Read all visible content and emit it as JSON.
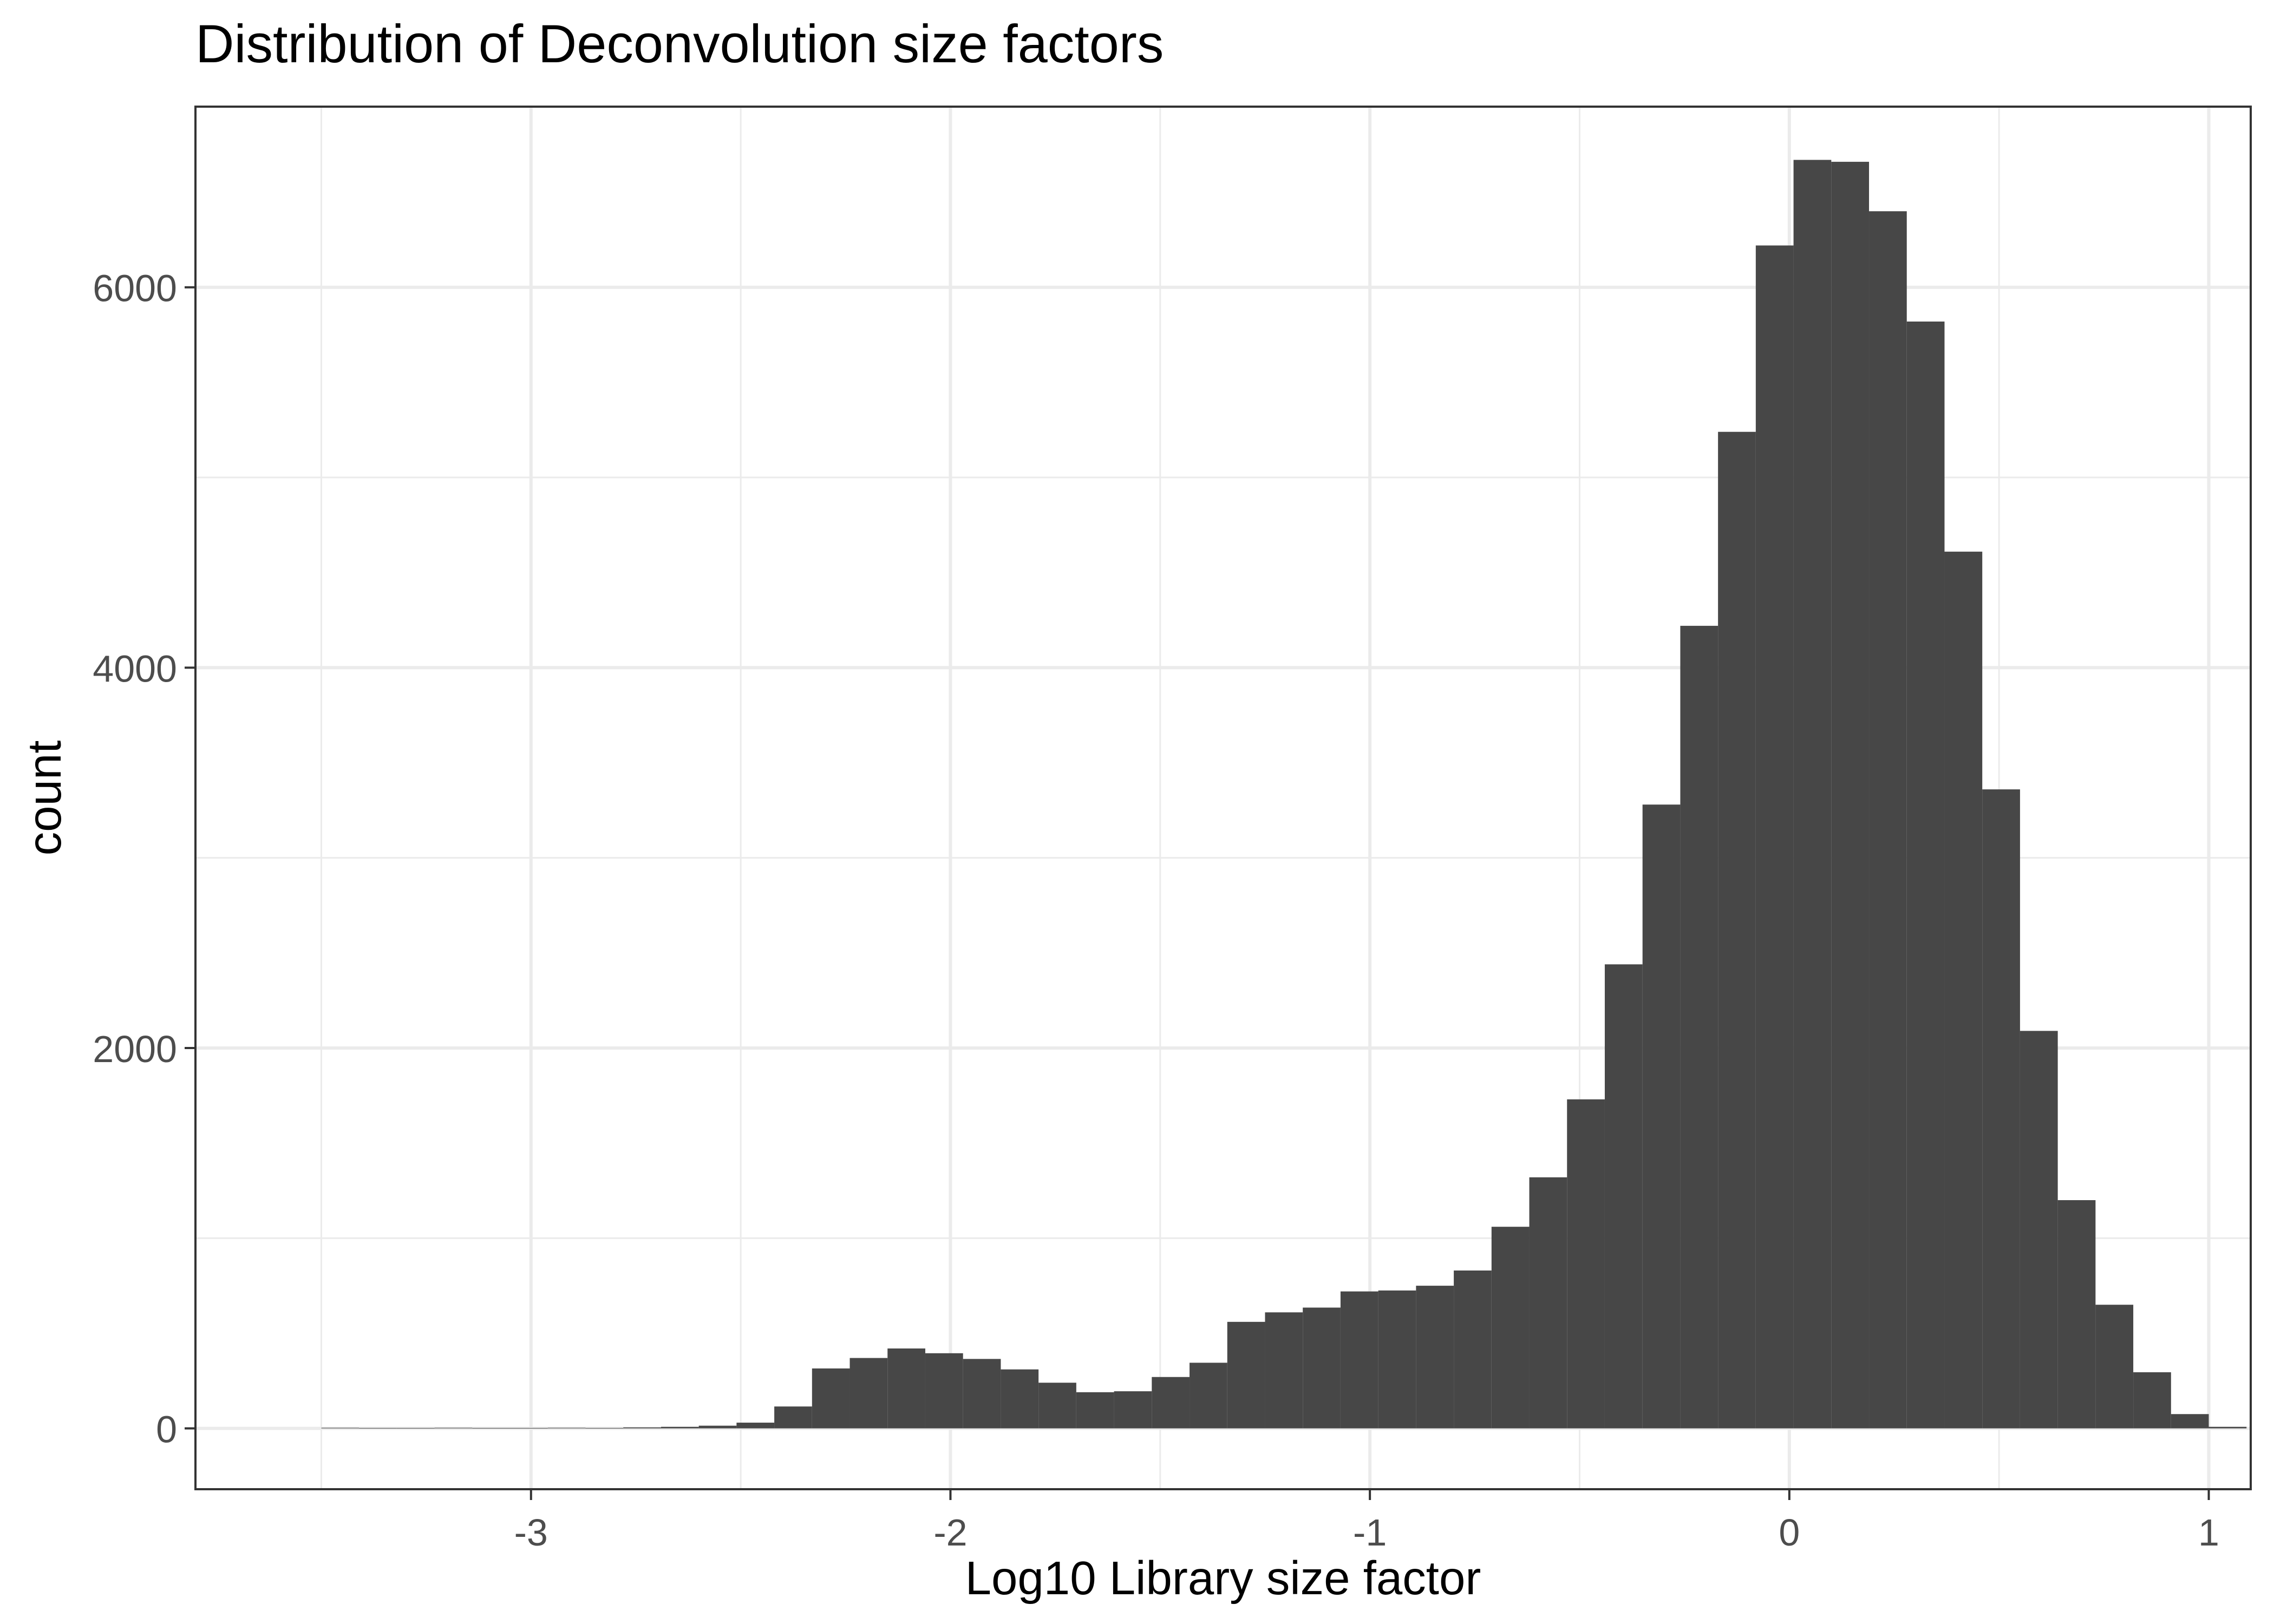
{
  "chart_data": {
    "type": "bar",
    "title": "Distribution of Deconvolution size factors",
    "xlabel": "Log10 Library size factor",
    "ylabel": "count",
    "x_ticks": [
      -3,
      -2,
      -1,
      0,
      1
    ],
    "x_tick_labels": [
      "-3",
      "-2",
      "-1",
      "0",
      "1"
    ],
    "y_ticks": [
      0,
      2000,
      4000,
      6000
    ],
    "y_tick_labels": [
      "0",
      "2000",
      "4000",
      "6000"
    ],
    "xlim": [
      -3.8,
      1.1
    ],
    "ylim": [
      -320,
      6950
    ],
    "bins": {
      "start": -3.5,
      "width": 0.09,
      "values": [
        3,
        2,
        2,
        3,
        2,
        2,
        3,
        2,
        5,
        8,
        14,
        30,
        115,
        315,
        370,
        420,
        395,
        365,
        310,
        240,
        190,
        195,
        270,
        345,
        560,
        610,
        635,
        720,
        725,
        750,
        830,
        1060,
        1320,
        1730,
        2440,
        3280,
        4220,
        5240,
        6220,
        6670,
        6660,
        6400,
        5820,
        4610,
        3360,
        2090,
        1200,
        650,
        295,
        75,
        8
      ]
    },
    "grid": true,
    "legend": "none",
    "bar_color": "#474747",
    "background_color": "#ffffff",
    "grid_color": "#ebebeb",
    "panel_border_color": "#333333"
  }
}
